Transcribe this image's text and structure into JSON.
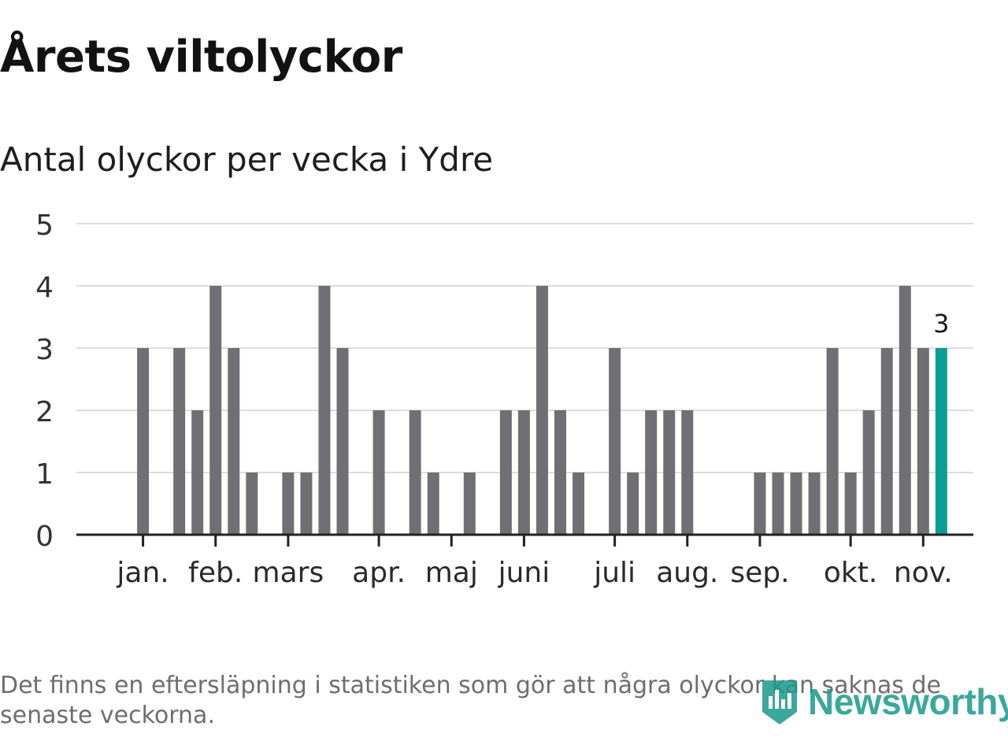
{
  "title": "Årets viltolyckor",
  "subtitle": "Antal olyckor per vecka i Ydre",
  "footnote": "Det finns en eftersläpning i statistiken som gör att några olyckor kan saknas de senaste veckorna.",
  "logo": {
    "text": "Newsworthy",
    "icon": "newsworthy-bar-chart-icon"
  },
  "colors": {
    "bar": "#707074",
    "highlight": "#0a9e94",
    "grid": "#dddddd",
    "axis": "#222222",
    "logo": "#1a9a8b"
  },
  "chart_data": {
    "type": "bar",
    "title": "Årets viltolyckor",
    "subtitle": "Antal olyckor per vecka i Ydre",
    "xlabel": "",
    "ylabel": "",
    "ylim": [
      0,
      5
    ],
    "yticks": [
      "0",
      "1",
      "2",
      "3",
      "4",
      "5"
    ],
    "grid": true,
    "week_count": 47,
    "weeks": [
      1,
      2,
      3,
      4,
      5,
      6,
      7,
      8,
      9,
      10,
      11,
      12,
      13,
      14,
      15,
      16,
      17,
      18,
      19,
      20,
      21,
      22,
      23,
      24,
      25,
      26,
      27,
      28,
      29,
      30,
      31,
      32,
      33,
      34,
      35,
      36,
      37,
      38,
      39,
      40,
      41,
      42,
      43,
      44,
      45,
      46,
      47
    ],
    "values": [
      0,
      0,
      3,
      0,
      3,
      2,
      4,
      3,
      1,
      0,
      1,
      1,
      4,
      3,
      0,
      2,
      0,
      2,
      1,
      0,
      1,
      0,
      2,
      2,
      4,
      2,
      1,
      0,
      3,
      1,
      2,
      2,
      2,
      0,
      0,
      0,
      1,
      1,
      1,
      1,
      3,
      1,
      2,
      3,
      4,
      3,
      3
    ],
    "highlight_index": 46,
    "highlight_label": "3",
    "month_labels": [
      {
        "label": "jan.",
        "week": 3
      },
      {
        "label": "feb.",
        "week": 7
      },
      {
        "label": "mars",
        "week": 11
      },
      {
        "label": "apr.",
        "week": 16
      },
      {
        "label": "maj",
        "week": 20
      },
      {
        "label": "juni",
        "week": 24
      },
      {
        "label": "juli",
        "week": 29
      },
      {
        "label": "aug.",
        "week": 33
      },
      {
        "label": "sep.",
        "week": 37
      },
      {
        "label": "okt.",
        "week": 42
      },
      {
        "label": "nov.",
        "week": 46
      }
    ]
  }
}
